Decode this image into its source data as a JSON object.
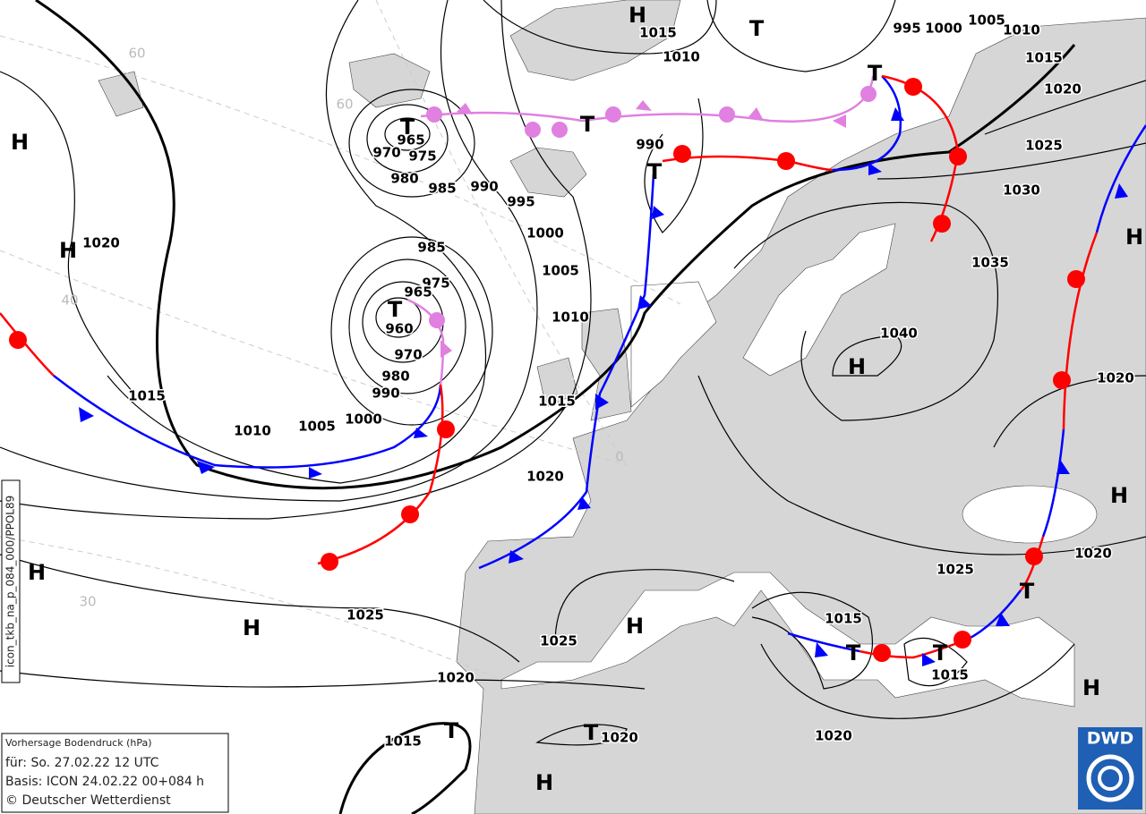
{
  "pressure_systems": [
    "H",
    "T",
    "T",
    "H",
    "T",
    "T",
    "T",
    "H",
    "H",
    "T",
    "H",
    "H",
    "H",
    "H",
    "H",
    "T",
    "T",
    "T",
    "H",
    "T",
    "T",
    "H"
  ],
  "isobar_labels": [
    1015,
    1010,
    995,
    1000,
    1005,
    1010,
    1015,
    1020,
    1025,
    1030,
    1035,
    1040,
    1020,
    1020,
    965,
    970,
    975,
    980,
    985,
    990,
    995,
    990,
    1000,
    1005,
    1010,
    1015,
    1020,
    985,
    975,
    965,
    960,
    970,
    980,
    990,
    1000,
    1005,
    1010,
    1015,
    1020,
    1025,
    1025,
    1025,
    1015,
    1015,
    1020,
    1020,
    1015,
    1020
  ],
  "graticule_labels": [
    60,
    60,
    40,
    30,
    0
  ],
  "info_box": {
    "title": "Vorhersage Bodendruck (hPa)",
    "valid": "für:  So. 27.02.22  12 UTC",
    "basis": "Basis: ICON  24.02.22 00+084 h",
    "copyright": "© Deutscher Wetterdienst"
  },
  "product_id": "icon_tkb_na_p_084_000/PPOL89",
  "logo": "DWD"
}
